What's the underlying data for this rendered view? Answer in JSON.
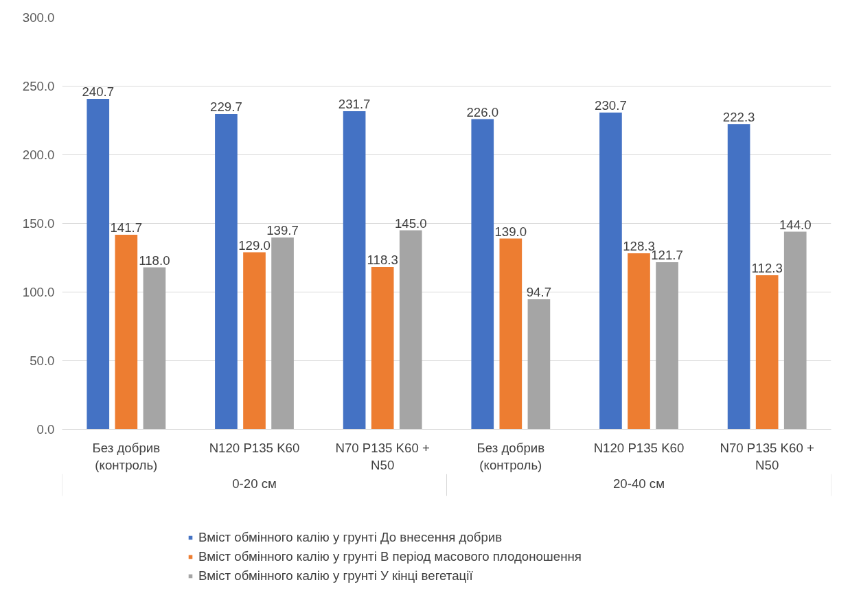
{
  "chart_data": {
    "type": "bar",
    "categories": [
      "Без добрив (контроль)",
      "N120 P135 K60",
      "N70 P135 K60 + N50",
      "Без добрив (контроль)",
      "N120 P135 K60",
      "N70 P135 K60 + N50"
    ],
    "series": [
      {
        "name": "Вміст обмінного калію у грунті До внесення добрив",
        "color": "#4472c4",
        "values": [
          240.7,
          229.7,
          231.7,
          226.0,
          230.7,
          222.3
        ],
        "value_labels": [
          "240.7",
          "229.7",
          "231.7",
          "226.0",
          "230.7",
          "222.3"
        ]
      },
      {
        "name": "Вміст обмінного калію у грунті В період масового плодоношення",
        "color": "#ed7d31",
        "values": [
          141.7,
          129.0,
          118.3,
          139.0,
          128.3,
          112.3
        ],
        "value_labels": [
          "141.7",
          "129.0",
          "118.3",
          "139.0",
          "128.3",
          "112.3"
        ]
      },
      {
        "name": "Вміст обмінного калію у грунті У кінці вегетації",
        "color": "#a5a5a5",
        "values": [
          118.0,
          139.7,
          145.0,
          94.7,
          121.7,
          144.0
        ],
        "value_labels": [
          "118.0",
          "139.7",
          "145.0",
          "94.7",
          "121.7",
          "144.0"
        ]
      }
    ],
    "annotations": [
      "0-20 см",
      "20-40 см"
    ],
    "ylim": [
      0,
      300
    ],
    "yticks": [
      {
        "value": 0,
        "label": "0.0"
      },
      {
        "value": 50,
        "label": "50.0"
      },
      {
        "value": 100,
        "label": "100.0"
      },
      {
        "value": 150,
        "label": "150.0"
      },
      {
        "value": 200,
        "label": "200.0"
      },
      {
        "value": 250,
        "label": "250.0"
      },
      {
        "value": 300,
        "label": "300.0"
      }
    ],
    "grid": "y",
    "legend": "bottom"
  }
}
